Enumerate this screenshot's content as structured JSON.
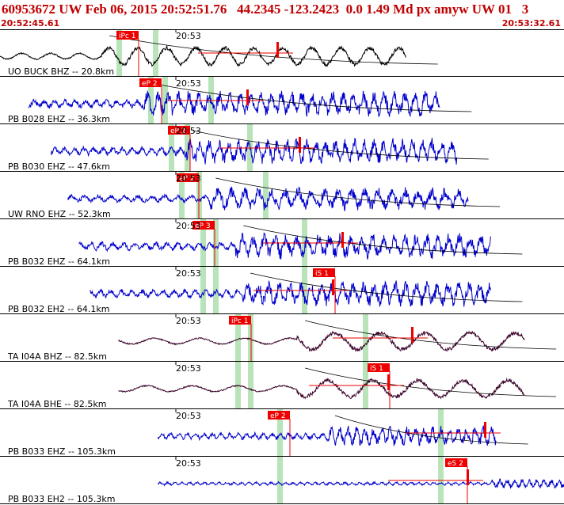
{
  "header": {
    "title": "60953672 UW Feb 06, 2015 20:52:51.76   44.2345 -123.2423  0.0 1.49 Md px amyw UW 01   3",
    "start_time": "20:52:45.61",
    "end_time": "20:53:32.61"
  },
  "time_tick_label": "20:53",
  "colors": {
    "pick_box": "#ee0000",
    "pick_text": "#ffffff",
    "window": "#b9e3b9",
    "trace_blue": "#0000cc",
    "trace_black": "#000000",
    "trace_purple": "#3a0028",
    "coda": "#ee0000"
  },
  "panels": [
    {
      "label": "UO BUCK BHZ -- 20.8km",
      "pick": "iPc 1",
      "color": "black",
      "start": 0.0,
      "end": 0.72,
      "amp": 0.55,
      "freq": 14,
      "onset": 0.25
    },
    {
      "label": "PB B028 EHZ -- 36.3km",
      "pick": "eP 2",
      "color": "blue",
      "start": 0.05,
      "end": 0.78,
      "amp": 0.5,
      "freq": 40,
      "onset": 0.28
    },
    {
      "label": "PB B030 EHZ -- 47.6km",
      "pick": "eP 2",
      "color": "blue",
      "start": 0.09,
      "end": 0.81,
      "amp": 0.5,
      "freq": 42,
      "onset": 0.33
    },
    {
      "label": "UW RNO EHZ -- 52.3km",
      "pick": "eP 2",
      "color": "blue",
      "start": 0.12,
      "end": 0.83,
      "amp": 0.45,
      "freq": 30,
      "onset": 0.35
    },
    {
      "label": "PB B032 EHZ -- 64.1km",
      "pick": "eP 3",
      "color": "blue",
      "start": 0.14,
      "end": 0.87,
      "amp": 0.5,
      "freq": 38,
      "onset": 0.38
    },
    {
      "label": "PB B032 EH2 -- 64.1km",
      "pick": "iS 1",
      "color": "blue",
      "start": 0.16,
      "end": 0.87,
      "amp": 0.5,
      "freq": 38,
      "onset": 0.38
    },
    {
      "label": "TA I04A BHZ -- 82.5km",
      "pick": "iPc 1",
      "color": "purple",
      "start": 0.21,
      "end": 0.93,
      "amp": 0.55,
      "freq": 9,
      "onset": 0.44
    },
    {
      "label": "TA I04A BHE -- 82.5km",
      "pick": "iS 1",
      "color": "purple",
      "start": 0.21,
      "end": 0.93,
      "amp": 0.55,
      "freq": 9,
      "onset": 0.44
    },
    {
      "label": "PB B033 EHZ -- 105.3km",
      "pick": "eP 2",
      "color": "blue",
      "start": 0.28,
      "end": 0.88,
      "amp": 0.4,
      "freq": 40,
      "onset": 0.5
    },
    {
      "label": "PB B033 EH2 -- 105.3km",
      "pick": "eS 2",
      "color": "blue",
      "start": 0.28,
      "end": 1.0,
      "amp": 0.2,
      "freq": 55,
      "onset": 0.82
    }
  ]
}
